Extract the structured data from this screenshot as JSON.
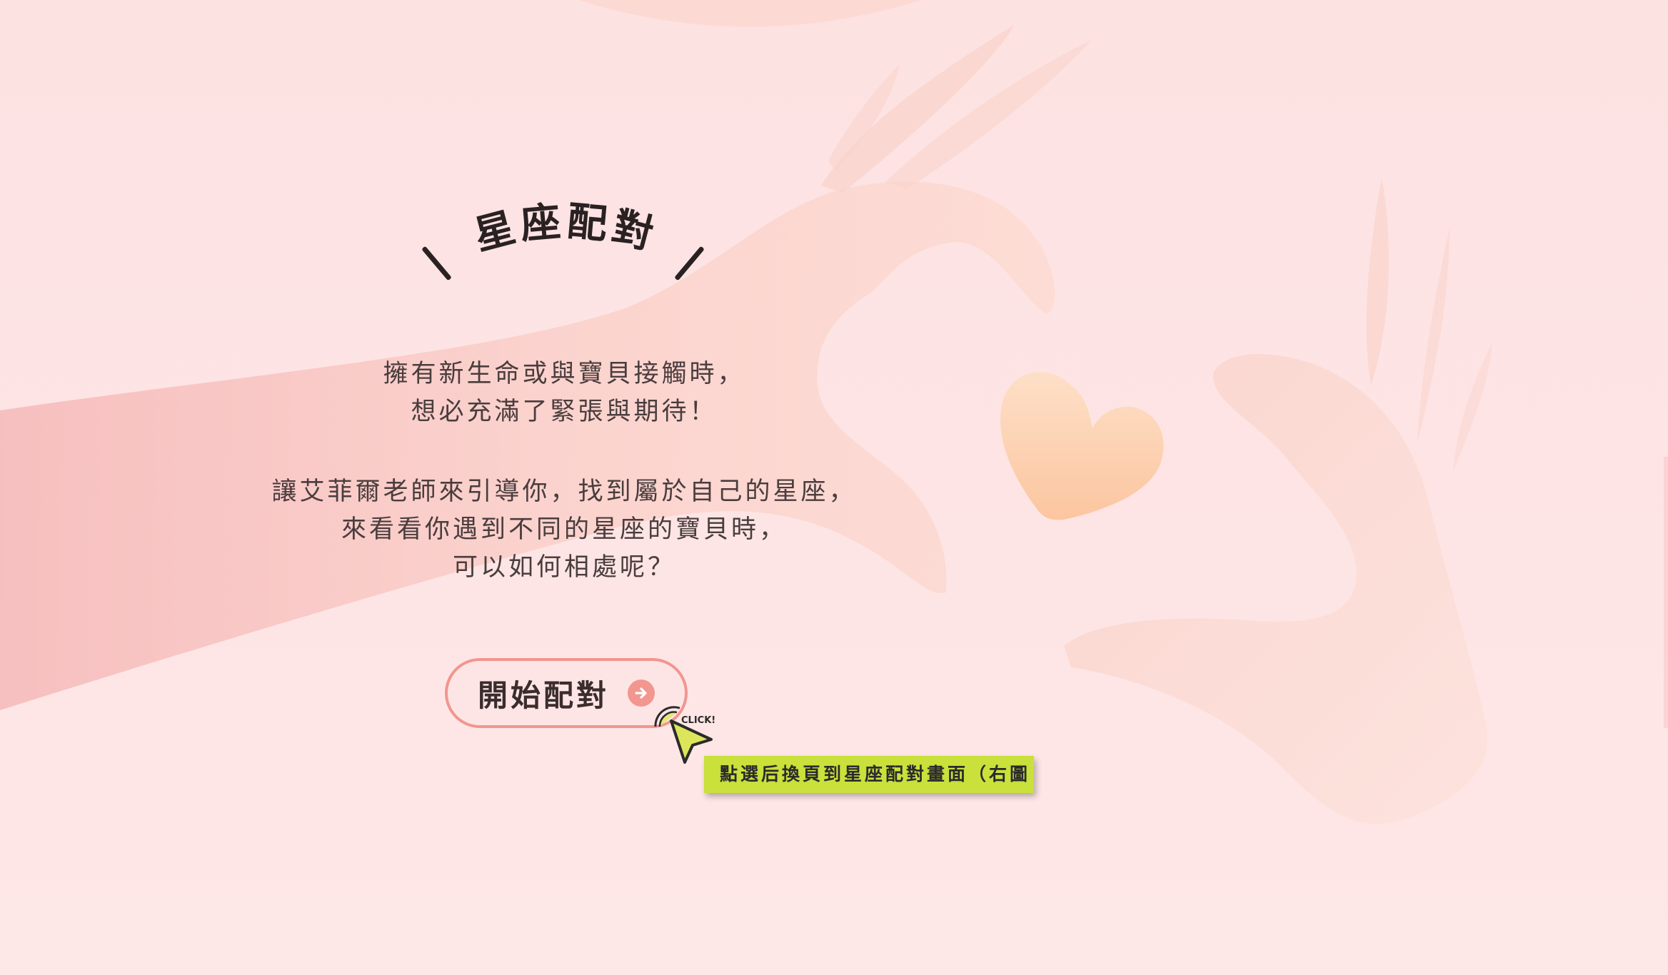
{
  "title": {
    "text": "星座配對"
  },
  "intro": {
    "para1": [
      "擁有新生命或與寶貝接觸時，",
      "想必充滿了緊張與期待！"
    ],
    "para2": [
      "讓艾菲爾老師來引導你，找到屬於自己的星座，",
      "來看看你遇到不同的星座的寶貝時，",
      "可以如何相處呢？"
    ]
  },
  "start_button": {
    "label": "開始配對",
    "icon": "arrow-right-circle-icon"
  },
  "cursor": {
    "text": "CLICK!",
    "icon": "pointer-click-icon"
  },
  "note": {
    "text": "點選后換頁到星座配對畫面（右圖"
  },
  "colors": {
    "background": "#fde3e3",
    "accent": "#f2958f",
    "note_bg": "#c9e13a",
    "heart": "#fcc8a3",
    "text": "#3b2c2d"
  }
}
